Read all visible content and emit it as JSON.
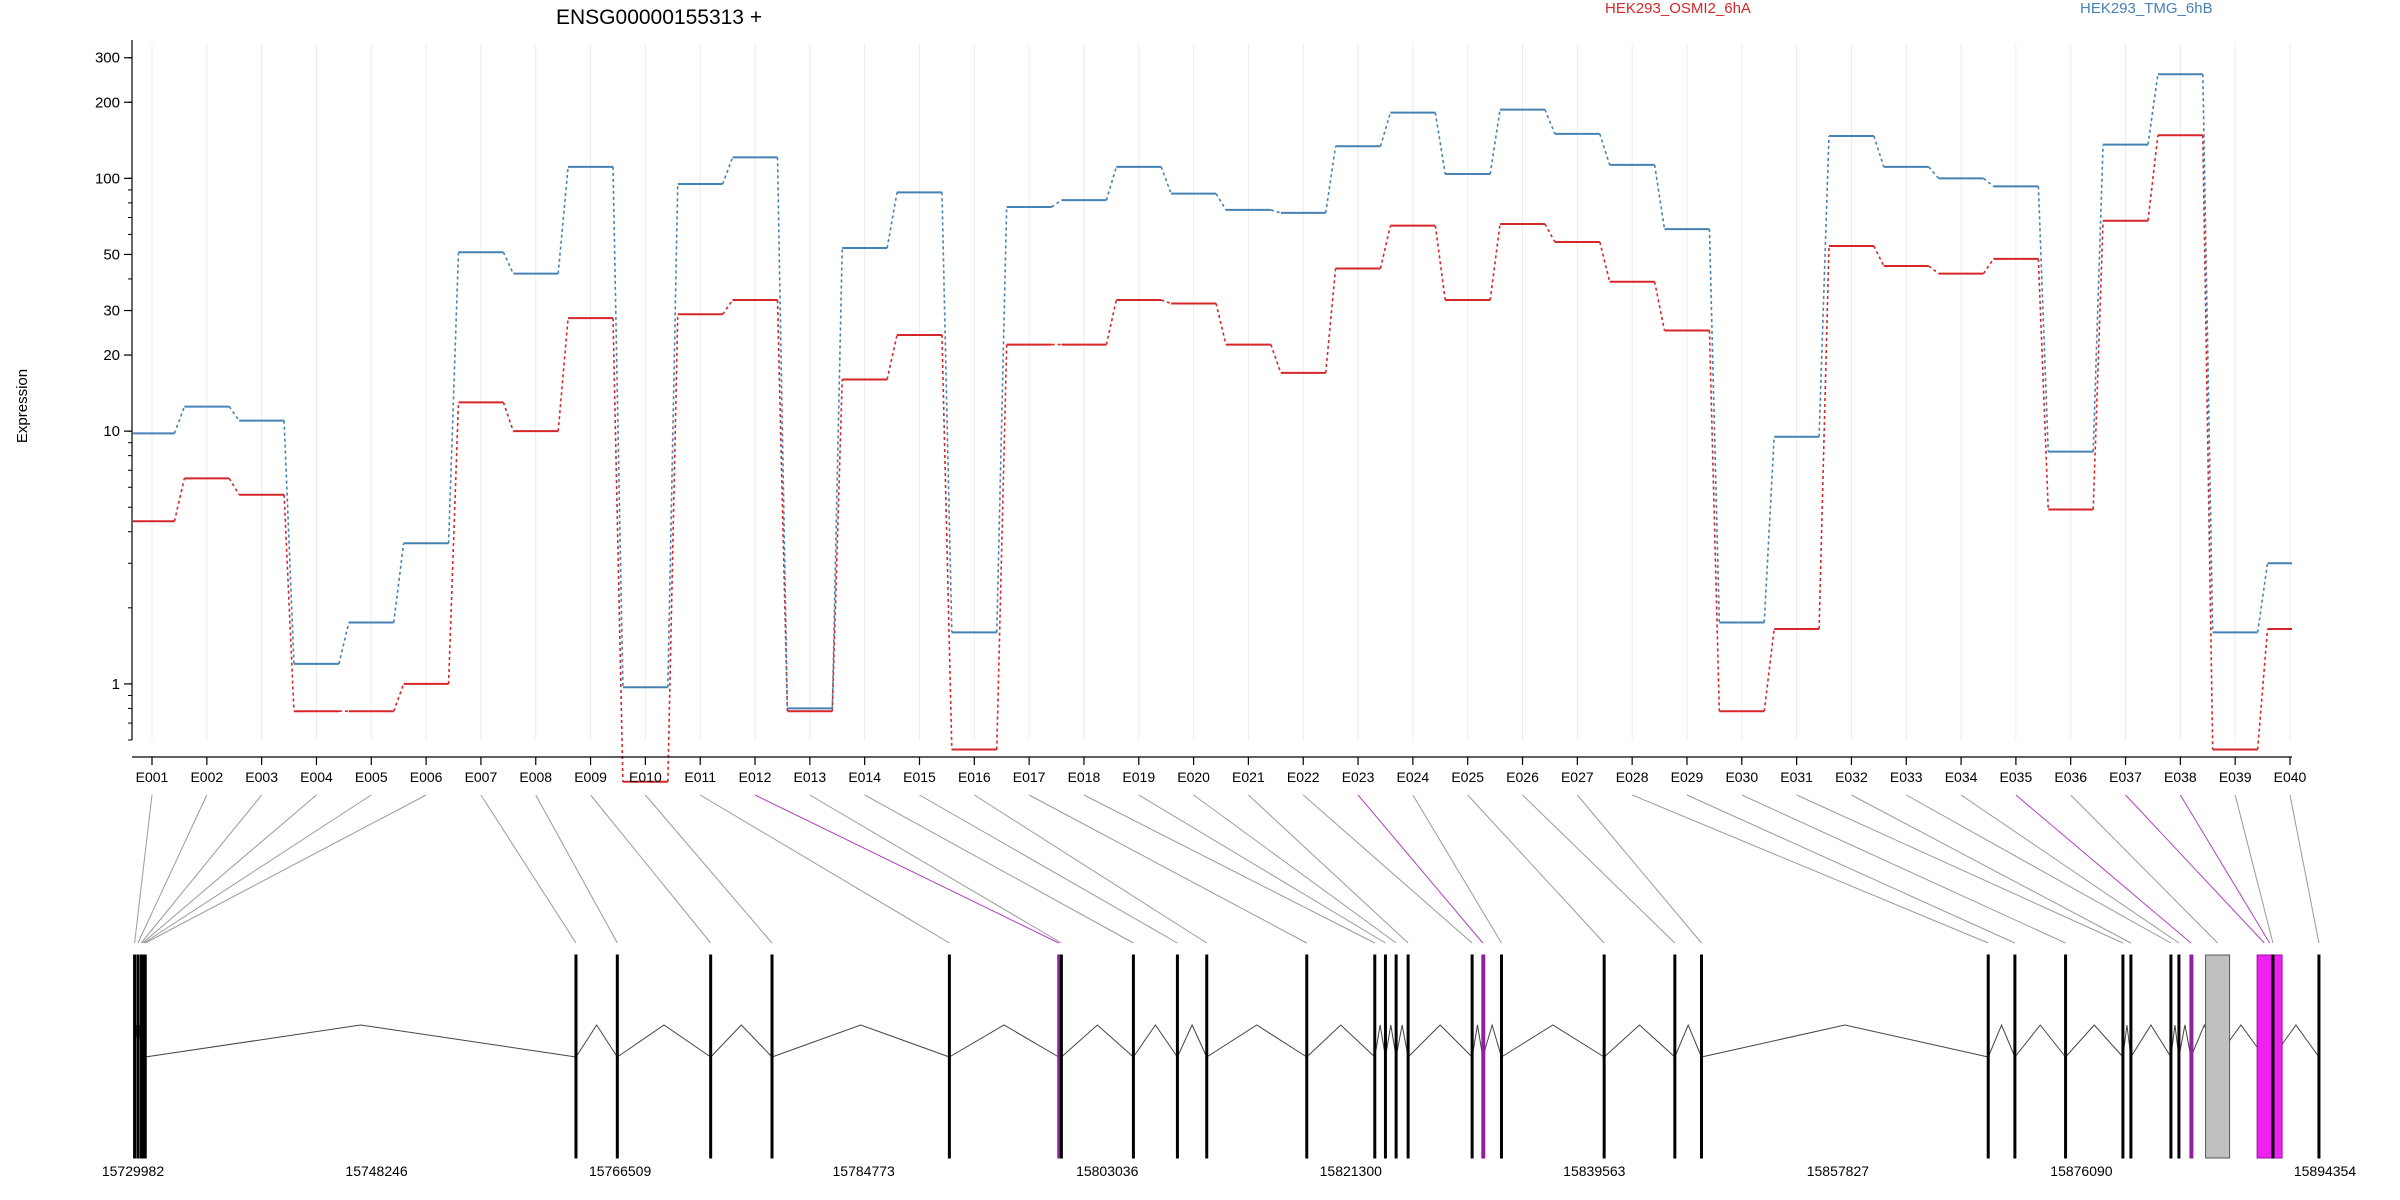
{
  "chart_data": {
    "type": "line",
    "title": "ENSG00000155313 +",
    "ylabel": "Expression",
    "xlabel": "",
    "yscale": "log",
    "ylim": [
      0.6,
      340
    ],
    "y_ticks": [
      1,
      10,
      20,
      30,
      50,
      100,
      200,
      300
    ],
    "y_tick_labels": [
      "1",
      "10",
      "20",
      "30",
      "50",
      "100",
      "200",
      "300"
    ],
    "grid": "vertical lines at each exon, light grey",
    "legend_placement": "top",
    "categories": [
      "E001",
      "E002",
      "E003",
      "E004",
      "E005",
      "E006",
      "E007",
      "E008",
      "E009",
      "E010",
      "E011",
      "E012",
      "E013",
      "E014",
      "E015",
      "E016",
      "E017",
      "E018",
      "E019",
      "E020",
      "E021",
      "E022",
      "E023",
      "E024",
      "E025",
      "E026",
      "E027",
      "E028",
      "E029",
      "E030",
      "E031",
      "E032",
      "E033",
      "E034",
      "E035",
      "E036",
      "E037",
      "E038",
      "E039",
      "E040"
    ],
    "series": [
      {
        "name": "HEK293_OSMI2_6hA",
        "color": "#d62728",
        "values": [
          4.4,
          6.5,
          5.6,
          0.78,
          0.78,
          1.0,
          13,
          10,
          28,
          0.41,
          29,
          33,
          0.78,
          16,
          24,
          0.55,
          22,
          22,
          33,
          32,
          22,
          17,
          44,
          65,
          33,
          66,
          56,
          39,
          25,
          0.78,
          1.65,
          54,
          45,
          42,
          48,
          4.9,
          68,
          148,
          0.55,
          1.65
        ]
      },
      {
        "name": "HEK293_TMG_6hB",
        "color": "#4682b4",
        "values": [
          9.8,
          12.5,
          11,
          1.2,
          1.75,
          3.6,
          51,
          42,
          111,
          0.97,
          95,
          121,
          0.8,
          53,
          88,
          1.6,
          77,
          82,
          111,
          87,
          75,
          73,
          134,
          182,
          104,
          187,
          150,
          113,
          63,
          1.75,
          9.5,
          147,
          111,
          100,
          93,
          8.3,
          136,
          258,
          1.6,
          3.0
        ]
      }
    ],
    "genomic_axis": {
      "tick_labels": [
        "15729982",
        "15748246",
        "15766509",
        "15784773",
        "15803036",
        "15821300",
        "15839563",
        "15857827",
        "15876090",
        "15894354"
      ],
      "tick_values": [
        15729982,
        15748246,
        15766509,
        15784773,
        15803036,
        15821300,
        15839563,
        15857827,
        15876090,
        15894354
      ],
      "range": [
        15729982,
        15894354
      ],
      "exon_positions": [
        15730100,
        15730350,
        15730600,
        15730700,
        15730800,
        15730900,
        15763200,
        15766300,
        15773300,
        15777900,
        15791200,
        15799400,
        15799600,
        15805000,
        15808300,
        15810500,
        15818000,
        15823100,
        15823900,
        15824700,
        15825600,
        15830400,
        15831200,
        15832600,
        15840300,
        15845600,
        15847600,
        15869100,
        15871100,
        15874900,
        15879200,
        15879800,
        15882800,
        15883400,
        15884300,
        15886300,
        15889800,
        15890200,
        15890450,
        15893900
      ],
      "highlighted_exons": [
        "E012",
        "E023",
        "E035",
        "E037",
        "E038"
      ],
      "highlight_color": "#c020c0",
      "grey_block_exon": "E036"
    }
  },
  "legend": [
    {
      "label": "HEK293_OSMI2_6hA",
      "color": "#d62728"
    },
    {
      "label": "HEK293_TMG_6hB",
      "color": "#4682b4"
    }
  ]
}
